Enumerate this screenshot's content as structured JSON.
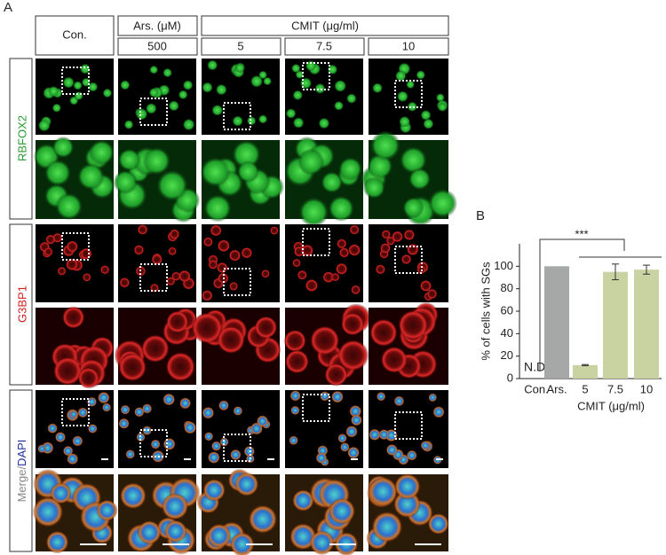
{
  "panel_a": {
    "label": "A",
    "headers": {
      "control": "Con.",
      "arsenite": "Ars. (μM)",
      "arsenite_dose": "500",
      "cmit": "CMIT (μg/ml)",
      "cmit_doses": [
        "5",
        "7.5",
        "10"
      ]
    },
    "row_labels": {
      "rbfox2": "RBFOX2",
      "g3bp1": "G3BP1",
      "merge": "Merge/",
      "dapi": "DAPI"
    }
  },
  "chart_data": {
    "type": "bar",
    "label": "B",
    "ylabel": "% of cells with SGs",
    "group_label": "CMIT (μg/ml)",
    "significance": "***",
    "categories": [
      "Con.",
      "Ars.",
      "5",
      "7.5",
      "10"
    ],
    "values": [
      null,
      100,
      12,
      95,
      97
    ],
    "value_labels": [
      "N.D.",
      null,
      null,
      null,
      null
    ],
    "errors": [
      null,
      null,
      0.5,
      7,
      4
    ],
    "colors": [
      "#a5a8a7",
      "#a5a8a7",
      "#c9d3a1",
      "#c9d3a1",
      "#c9d3a1"
    ],
    "ylim": [
      0,
      120
    ],
    "yticks": [
      0,
      20,
      40,
      60,
      80,
      100
    ]
  }
}
